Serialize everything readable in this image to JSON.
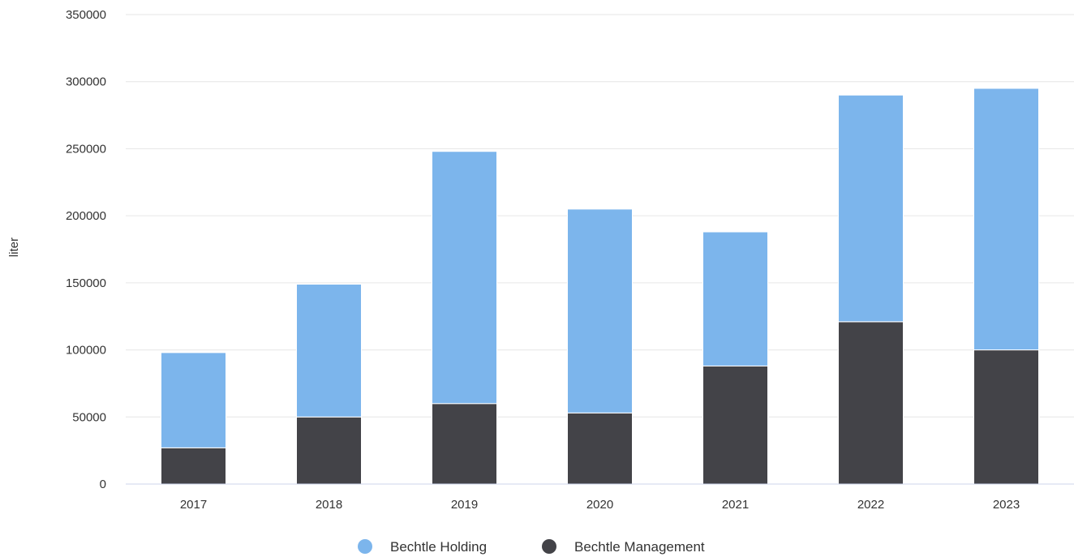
{
  "chart_data": {
    "type": "bar",
    "stacked": true,
    "categories": [
      "2017",
      "2018",
      "2019",
      "2020",
      "2021",
      "2022",
      "2023"
    ],
    "series": [
      {
        "name": "Bechtle Management",
        "color": "#434348",
        "values": [
          27000,
          50000,
          60000,
          53000,
          88000,
          121000,
          100000
        ]
      },
      {
        "name": "Bechtle Holding",
        "color": "#7cb5ec",
        "values": [
          71000,
          99000,
          188000,
          152000,
          100000,
          169000,
          195000
        ]
      }
    ],
    "ylabel": "liter",
    "ylim": [
      0,
      350000
    ],
    "yticks": [
      "0",
      "50000",
      "100000",
      "150000",
      "200000",
      "250000",
      "300000",
      "350000"
    ],
    "grid": true,
    "legend": [
      {
        "label": "Bechtle Holding",
        "color": "#7cb5ec"
      },
      {
        "label": "Bechtle Management",
        "color": "#434348"
      }
    ],
    "legend_position": "bottom-center"
  }
}
